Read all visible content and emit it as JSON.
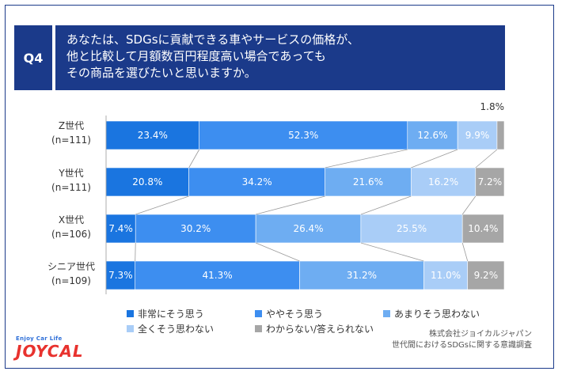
{
  "question": {
    "badge": "Q4",
    "lines": [
      "あなたは、SDGsに貢献できる車やサービスの価格が、",
      "他と比較して月額数百円程度高い場合であっても",
      "その商品を選びたいと思いますか。"
    ]
  },
  "rows": [
    {
      "name": "Z世代",
      "n": "(n=111)"
    },
    {
      "name": "Y世代",
      "n": "(n=111)"
    },
    {
      "name": "X世代",
      "n": "(n=106)"
    },
    {
      "name": "シニア世代",
      "n": "(n=109)"
    }
  ],
  "chart_data": {
    "type": "bar",
    "orientation": "horizontal",
    "stacked": true,
    "normalized_to": 100,
    "categories": [
      "Z世代",
      "Y世代",
      "X世代",
      "シニア世代"
    ],
    "series": [
      {
        "name": "非常にそう思う",
        "color": "#1a75e0",
        "values": [
          23.4,
          20.8,
          7.4,
          7.3
        ]
      },
      {
        "name": "ややそう思う",
        "color": "#3d8ef0",
        "values": [
          52.3,
          34.2,
          30.2,
          41.3
        ]
      },
      {
        "name": "あまりそう思わない",
        "color": "#6eadf2",
        "values": [
          12.6,
          21.6,
          26.4,
          31.2
        ]
      },
      {
        "name": "全くそう思わない",
        "color": "#a9cdf7",
        "values": [
          9.9,
          16.2,
          25.5,
          11.0
        ]
      },
      {
        "name": "わからない/答えられない",
        "color": "#a6a6a6",
        "values": [
          1.8,
          7.2,
          10.4,
          9.2
        ]
      }
    ],
    "data_labels": [
      [
        "23.4%",
        "52.3%",
        "12.6%",
        "9.9%",
        "1.8%"
      ],
      [
        "20.8%",
        "34.2%",
        "21.6%",
        "16.2%",
        "7.2%"
      ],
      [
        "7.4%",
        "30.2%",
        "26.4%",
        "25.5%",
        "10.4%"
      ],
      [
        "7.3%",
        "41.3%",
        "31.2%",
        "11.0%",
        "9.2%"
      ]
    ],
    "legend_position": "bottom"
  },
  "credit": {
    "company": "株式会社ジョイカルジャパン",
    "survey": "世代間におけるSDGsに関する意識調査"
  },
  "logo": {
    "tagline": "Enjoy Car Life",
    "brand": "JOYCAL"
  }
}
